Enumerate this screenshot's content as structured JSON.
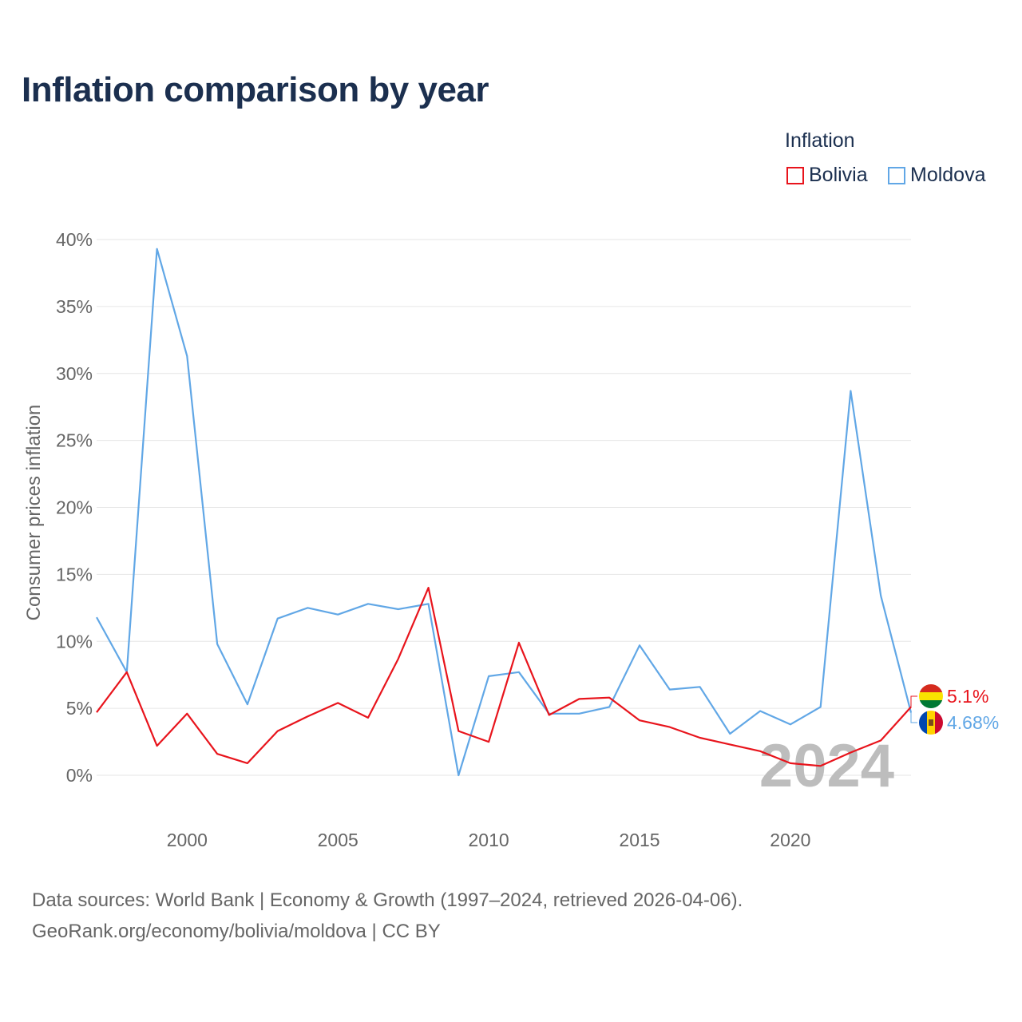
{
  "title": "Inflation comparison by year",
  "legend": {
    "title": "Inflation",
    "items": [
      {
        "label": "Bolivia",
        "color": "#e8141c"
      },
      {
        "label": "Moldova",
        "color": "#61a7e6"
      }
    ]
  },
  "source": {
    "line1": "Data sources: World Bank | Economy & Growth (1997–2024, retrieved 2026-04-06).",
    "line2": "GeoRank.org/economy/bolivia/moldova | CC BY"
  },
  "chart_data": {
    "type": "line",
    "title": "Inflation comparison by year",
    "xlabel": "",
    "ylabel": "Consumer prices inflation",
    "xlim": [
      1997,
      2024
    ],
    "ylim": [
      0,
      40
    ],
    "yticks": [
      0,
      5,
      10,
      15,
      20,
      25,
      30,
      35,
      40
    ],
    "ytick_labels": [
      "0%",
      "5%",
      "10%",
      "15%",
      "20%",
      "25%",
      "30%",
      "35%",
      "40%"
    ],
    "xticks": [
      2000,
      2005,
      2010,
      2015,
      2020
    ],
    "xtick_labels": [
      "2000",
      "2005",
      "2010",
      "2015",
      "2020"
    ],
    "grid": true,
    "watermark_year": "2024",
    "x": [
      1997,
      1998,
      1999,
      2000,
      2001,
      2002,
      2003,
      2004,
      2005,
      2006,
      2007,
      2008,
      2009,
      2010,
      2011,
      2012,
      2013,
      2014,
      2015,
      2016,
      2017,
      2018,
      2019,
      2020,
      2021,
      2022,
      2023,
      2024
    ],
    "series": [
      {
        "name": "Bolivia",
        "color": "#e8141c",
        "end_label": "5.1%",
        "values": [
          4.7,
          7.7,
          2.2,
          4.6,
          1.6,
          0.9,
          3.3,
          4.4,
          5.4,
          4.3,
          8.7,
          14.0,
          3.3,
          2.5,
          9.9,
          4.5,
          5.7,
          5.8,
          4.1,
          3.6,
          2.8,
          2.3,
          1.8,
          0.9,
          0.7,
          1.7,
          2.6,
          5.1
        ]
      },
      {
        "name": "Moldova",
        "color": "#61a7e6",
        "end_label": "4.68%",
        "values": [
          11.8,
          7.7,
          39.3,
          31.3,
          9.8,
          5.3,
          11.7,
          12.5,
          12.0,
          12.8,
          12.4,
          12.8,
          0.0,
          7.4,
          7.7,
          4.6,
          4.6,
          5.1,
          9.7,
          6.4,
          6.6,
          3.1,
          4.8,
          3.8,
          5.1,
          28.7,
          13.4,
          4.68
        ]
      }
    ]
  }
}
